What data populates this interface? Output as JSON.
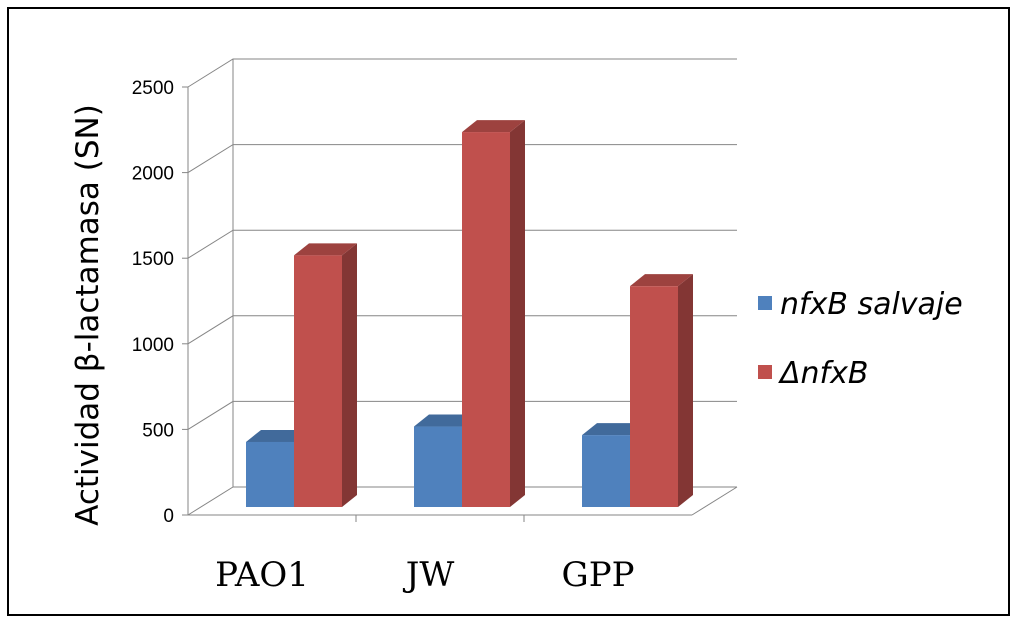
{
  "chart_data": {
    "type": "bar",
    "categories": [
      "PAO1",
      "JW",
      "GPP"
    ],
    "series": [
      {
        "name": "nfxB salvaje",
        "values": [
          380,
          470,
          420
        ],
        "color": "#4f81bd"
      },
      {
        "name": "ΔnfxB",
        "values": [
          1470,
          2190,
          1290
        ],
        "color": "#c0504d"
      }
    ],
    "ylabel": "Actividad β-lactamasa (SN)",
    "ylim": [
      0,
      2500
    ],
    "yticks": [
      0,
      500,
      1000,
      1500,
      2000,
      2500
    ],
    "grid": true,
    "legend_position": "right",
    "style": "3d-column"
  }
}
